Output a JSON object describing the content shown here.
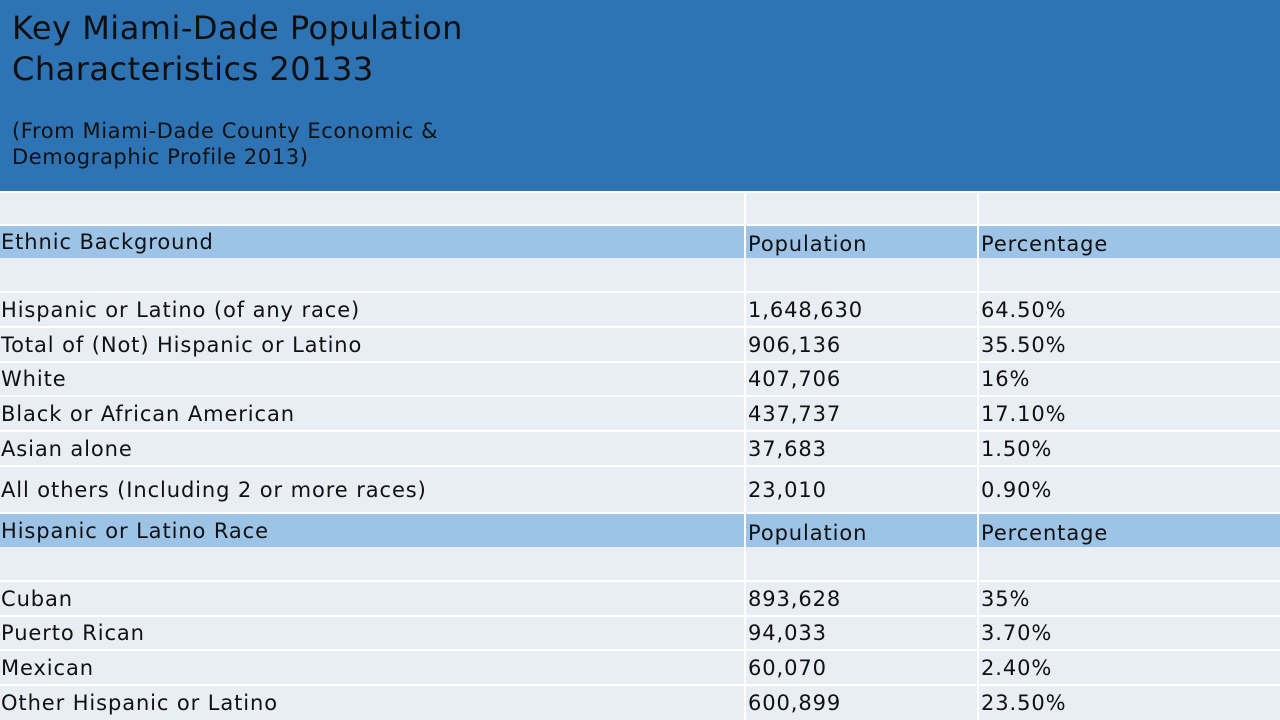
{
  "slide": {
    "title_line1": "Key Miami-Dade Population",
    "title_line2": "Characteristics 20133",
    "subtitle_line1": "(From Miami-Dade County Economic &",
    "subtitle_line2": "Demographic Profile 2013)"
  },
  "table": {
    "section1": {
      "header": [
        "Ethnic Background",
        "Population",
        "Percentage"
      ],
      "rows": [
        [
          "Hispanic or Latino (of any race)",
          "1,648,630",
          "64.50%"
        ],
        [
          "Total of (Not) Hispanic or Latino",
          "906,136",
          "35.50%"
        ],
        [
          "White",
          "407,706",
          "16%"
        ],
        [
          "Black or African American",
          "437,737",
          "17.10%"
        ],
        [
          "Asian alone",
          "37,683",
          "1.50%"
        ],
        [
          "All others (Including 2 or more races)",
          "23,010",
          "0.90%"
        ]
      ]
    },
    "section2": {
      "header": [
        "Hispanic or Latino Race",
        "Population",
        "Percentage"
      ],
      "rows": [
        [
          "Cuban",
          "893,628",
          "35%"
        ],
        [
          "Puerto Rican",
          "94,033",
          "3.70%"
        ],
        [
          "Mexican",
          "60,070",
          "2.40%"
        ],
        [
          "Other Hispanic or Latino",
          "600,899",
          "23.50%"
        ]
      ]
    }
  },
  "colors": {
    "header_band": "#2e74b5",
    "section_header": "#9dc3e6",
    "row_background": "#e9edf4"
  }
}
